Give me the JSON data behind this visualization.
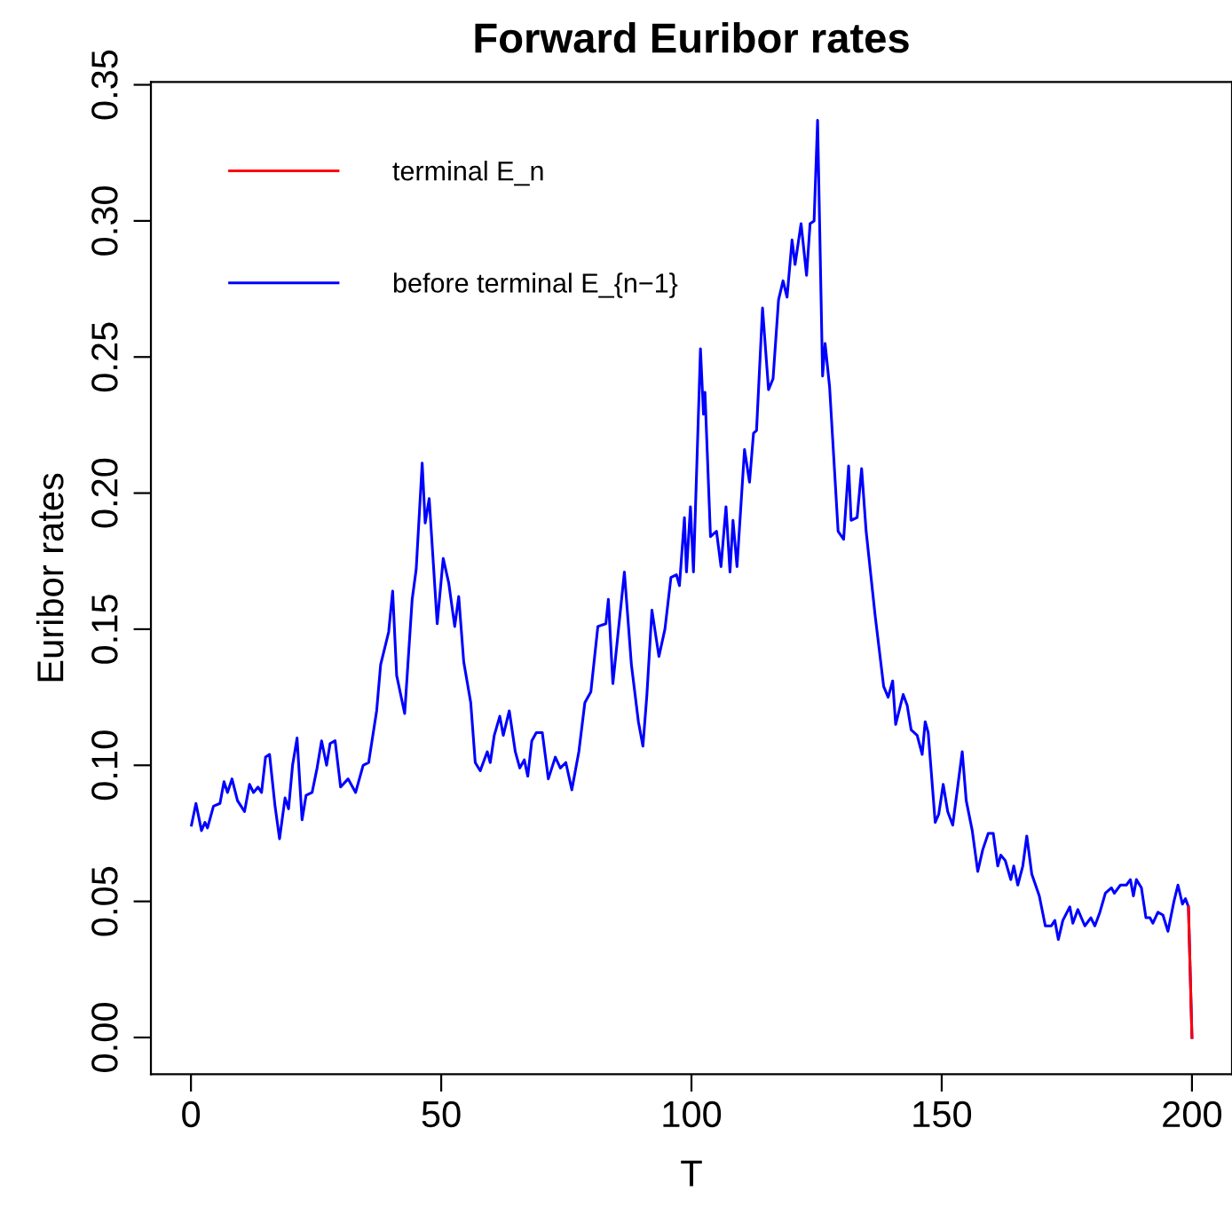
{
  "chart_data": {
    "type": "line",
    "title": "Forward Euribor rates",
    "xlabel": "T",
    "ylabel": "Euribor rates",
    "xlim": [
      -8,
      208
    ],
    "xticks": [
      0,
      50,
      100,
      150,
      200
    ],
    "ylim": [
      -0.0135,
      0.351
    ],
    "yticks": [
      {
        "value": 0,
        "label": "0.00"
      },
      {
        "value": 0.05,
        "label": "0.05"
      },
      {
        "value": 0.1,
        "label": "0.10"
      },
      {
        "value": 0.15,
        "label": "0.15"
      },
      {
        "value": 0.2,
        "label": "0.20"
      },
      {
        "value": 0.25,
        "label": "0.25"
      },
      {
        "value": 0.3,
        "label": "0.30"
      },
      {
        "value": 0.35,
        "label": "0.35"
      }
    ],
    "grid": false,
    "legend": "top left",
    "marker": "none",
    "line_style": "solid",
    "series": [
      {
        "name": "terminal E_n",
        "color": "#ff0000",
        "x": [
          199.3,
          200
        ],
        "values": [
          0.048,
          0.0
        ]
      },
      {
        "name": "before terminal E_{n−1}",
        "color": "#0000ff",
        "x": [
          0.1,
          1.0,
          2.1,
          2.8,
          3.3,
          4.5,
          5.8,
          6.6,
          7.3,
          8.2,
          9.3,
          10.7,
          11.7,
          12.5,
          13.4,
          14.1,
          14.9,
          15.7,
          16.8,
          17.7,
          18.8,
          19.5,
          20.3,
          21.2,
          22.2,
          23,
          24.2,
          25.2,
          26.1,
          27.1,
          27.8,
          28.8,
          29.9,
          31.4,
          32.9,
          34.4,
          35.5,
          37.1,
          37.9,
          39.5,
          40.3,
          41.1,
          42.7,
          44.2,
          45.0,
          46.2,
          46.8,
          47.6,
          49.2,
          50.4,
          51.5,
          52.7,
          53.5,
          54.5,
          55.9,
          56.8,
          57.8,
          59.2,
          59.8,
          60.6,
          61.7,
          62.4,
          63.6,
          64.8,
          65.7,
          66.6,
          67.3,
          68.1,
          69.0,
          70.2,
          71.4,
          72.8,
          73.8,
          74.9,
          76.1,
          77.5,
          78.7,
          79.9,
          81.3,
          82.9,
          83.4,
          84.3,
          85.2,
          86.6,
          88.0,
          89.4,
          90.3,
          91.1,
          92.1,
          93.5,
          94.7,
          95.9,
          97.0,
          97.6,
          98.6,
          99.0,
          99.8,
          100.4,
          101.8,
          102.4,
          102.7,
          103.8,
          105.0,
          105.9,
          106.9,
          107.7,
          108.3,
          109.1,
          110.6,
          111.6,
          112.4,
          113.0,
          114.2,
          115.4,
          116.3,
          117.4,
          118.3,
          119.1,
          120.1,
          120.7,
          121.9,
          123.0,
          123.7,
          124.5,
          125.2,
          126.2,
          126.7,
          127.6,
          129.3,
          130.4,
          131.4,
          131.9,
          133.1,
          134.0,
          134.9,
          136.7,
          138.4,
          139.3,
          140.2,
          140.8,
          142.3,
          143.1,
          143.9,
          145.1,
          146.1,
          146.7,
          147.3,
          148.7,
          149.4,
          150.3,
          151.2,
          152.2,
          154.1,
          154.9,
          156.1,
          157.2,
          158.2,
          159.3,
          160.3,
          161.2,
          161.8,
          162.7,
          163.8,
          164.4,
          165.2,
          166.2,
          167.0,
          168.0,
          169.5,
          170.7,
          171.9,
          172.6,
          173.3,
          174.2,
          175.6,
          176.2,
          177.2,
          178.6,
          179.8,
          180.6,
          181.6,
          182.7,
          183.9,
          184.5,
          185.7,
          186.9,
          187.7,
          188.3,
          188.9,
          189.9,
          190.8,
          191.6,
          192.2,
          193.2,
          194.2,
          195.2,
          196.4,
          197.2,
          198.1,
          198.7,
          199.3,
          200
        ],
        "values": [
          0.078,
          0.086,
          0.076,
          0.079,
          0.077,
          0.085,
          0.086,
          0.094,
          0.09,
          0.095,
          0.087,
          0.083,
          0.093,
          0.09,
          0.092,
          0.09,
          0.103,
          0.104,
          0.085,
          0.073,
          0.088,
          0.084,
          0.1,
          0.11,
          0.08,
          0.089,
          0.09,
          0.099,
          0.109,
          0.1,
          0.108,
          0.109,
          0.092,
          0.095,
          0.09,
          0.1,
          0.101,
          0.12,
          0.137,
          0.149,
          0.164,
          0.133,
          0.119,
          0.161,
          0.172,
          0.211,
          0.189,
          0.198,
          0.152,
          0.176,
          0.167,
          0.151,
          0.162,
          0.138,
          0.123,
          0.101,
          0.098,
          0.105,
          0.101,
          0.111,
          0.118,
          0.111,
          0.12,
          0.105,
          0.099,
          0.102,
          0.096,
          0.109,
          0.112,
          0.112,
          0.095,
          0.103,
          0.099,
          0.101,
          0.091,
          0.105,
          0.123,
          0.127,
          0.151,
          0.152,
          0.161,
          0.13,
          0.146,
          0.171,
          0.137,
          0.116,
          0.107,
          0.126,
          0.157,
          0.14,
          0.15,
          0.169,
          0.17,
          0.166,
          0.191,
          0.171,
          0.195,
          0.171,
          0.253,
          0.229,
          0.237,
          0.184,
          0.186,
          0.173,
          0.195,
          0.171,
          0.19,
          0.173,
          0.216,
          0.204,
          0.222,
          0.223,
          0.268,
          0.238,
          0.242,
          0.271,
          0.278,
          0.272,
          0.293,
          0.284,
          0.299,
          0.28,
          0.299,
          0.3,
          0.337,
          0.243,
          0.255,
          0.239,
          0.186,
          0.183,
          0.21,
          0.19,
          0.191,
          0.209,
          0.186,
          0.155,
          0.129,
          0.125,
          0.131,
          0.115,
          0.126,
          0.122,
          0.113,
          0.111,
          0.104,
          0.116,
          0.112,
          0.079,
          0.082,
          0.093,
          0.083,
          0.078,
          0.105,
          0.087,
          0.076,
          0.061,
          0.069,
          0.075,
          0.075,
          0.063,
          0.067,
          0.065,
          0.058,
          0.063,
          0.056,
          0.063,
          0.074,
          0.06,
          0.052,
          0.041,
          0.041,
          0.043,
          0.036,
          0.043,
          0.048,
          0.042,
          0.047,
          0.041,
          0.044,
          0.041,
          0.046,
          0.053,
          0.055,
          0.053,
          0.056,
          0.056,
          0.058,
          0.052,
          0.058,
          0.055,
          0.044,
          0.044,
          0.042,
          0.046,
          0.045,
          0.039,
          0.05,
          0.056,
          0.049,
          0.051,
          0.048,
          0.0
        ]
      }
    ]
  }
}
